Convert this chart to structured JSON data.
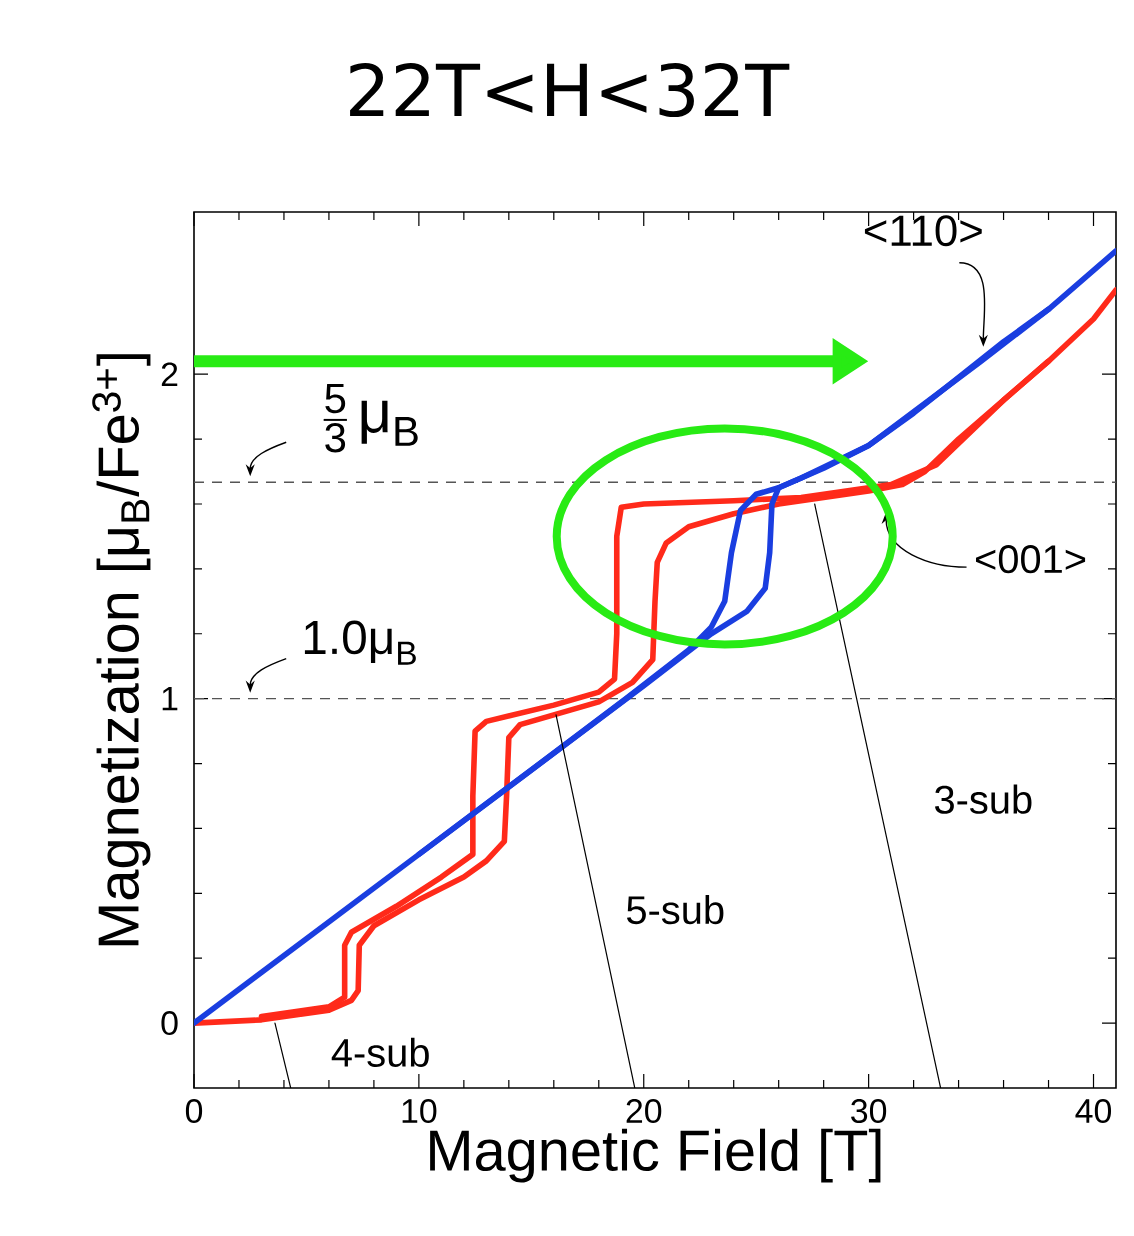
{
  "chart_data": {
    "type": "line",
    "title": "22T<H<32T",
    "xlabel": "Magnetic Field [T]",
    "ylabel": "Magnetization [μ$_{B}$/Fe$^{3+}$]",
    "xlim": [
      0,
      41
    ],
    "ylim": [
      -0.2,
      2.5
    ],
    "xticks": [
      0,
      10,
      20,
      30,
      40
    ],
    "yticks": [
      0,
      1,
      2
    ],
    "grid": false,
    "marker": "none",
    "line_style": "solid",
    "series": [
      {
        "color": "#ff2a1a",
        "x": [
          0,
          3,
          6,
          7,
          7.3,
          7.35,
          8,
          10,
          12,
          13,
          13.8,
          13.9,
          14,
          14.5,
          16,
          18,
          19.5,
          20.4,
          20.5,
          20.6,
          21,
          22,
          24,
          26,
          28,
          30,
          31.5,
          32.5,
          34,
          36,
          38,
          40,
          41
        ],
        "values": [
          0,
          0.01,
          0.04,
          0.07,
          0.1,
          0.24,
          0.3,
          0.38,
          0.45,
          0.5,
          0.56,
          0.7,
          0.88,
          0.92,
          0.95,
          0.99,
          1.05,
          1.12,
          1.3,
          1.42,
          1.48,
          1.53,
          1.57,
          1.6,
          1.62,
          1.64,
          1.66,
          1.7,
          1.8,
          1.92,
          2.04,
          2.17,
          2.26
        ]
      },
      {
        "color": "#ff2a1a",
        "x": [
          3,
          6,
          6.7,
          6.7,
          7,
          9,
          11,
          12.4,
          12.4,
          12.5,
          13,
          16,
          18,
          18.7,
          18.8,
          18.8,
          19,
          20,
          24,
          27,
          31,
          33,
          36,
          38
        ],
        "values": [
          0.02,
          0.05,
          0.08,
          0.24,
          0.28,
          0.36,
          0.45,
          0.52,
          0.7,
          0.9,
          0.93,
          0.98,
          1.02,
          1.06,
          1.2,
          1.5,
          1.59,
          1.6,
          1.61,
          1.62,
          1.66,
          1.72,
          1.92,
          2.04
        ]
      },
      {
        "color": "#1a3ee0",
        "x": [
          0,
          5,
          10,
          15,
          19.2,
          22,
          23,
          23.6,
          23.9,
          24.3,
          25,
          26,
          27,
          28,
          30,
          32,
          34,
          36,
          38,
          40,
          41
        ],
        "values": [
          0,
          0.26,
          0.52,
          0.78,
          1.0,
          1.15,
          1.22,
          1.3,
          1.45,
          1.58,
          1.63,
          1.65,
          1.68,
          1.71,
          1.78,
          1.88,
          1.99,
          2.1,
          2.2,
          2.32,
          2.38
        ]
      },
      {
        "color": "#1a3ee0",
        "x": [
          10,
          20,
          23,
          24.6,
          25.4,
          25.6,
          25.7,
          26,
          27,
          30,
          35,
          38
        ],
        "values": [
          0.52,
          1.04,
          1.2,
          1.27,
          1.34,
          1.45,
          1.6,
          1.65,
          1.68,
          1.78,
          2.04,
          2.2
        ]
      },
      {
        "color": "#000000",
        "x": [
          3.6,
          4.3
        ],
        "values": [
          0,
          -0.2
        ]
      },
      {
        "color": "#000000",
        "x": [
          16.1,
          19.6
        ],
        "values": [
          0.95,
          -0.2
        ]
      },
      {
        "color": "#000000",
        "x": [
          27.6,
          33.2
        ],
        "values": [
          1.6,
          -0.2
        ]
      }
    ],
    "ref_lines": [
      {
        "axis": "y",
        "value": 1,
        "label": "\\text{1.0μ}_{\\text{B}}",
        "color": "#555555",
        "line_style": "dashed"
      },
      {
        "axis": "y",
        "value": 1.667,
        "label": "\\frac{\\text{5}}{\\text{3}}\\,\\text{μ}_{\\text{B}}",
        "color": "#555555",
        "line_style": "dashed"
      }
    ],
    "annotations": [
      {
        "text": "<110>",
        "x": 35.1,
        "y": 2.06
      },
      "<001>",
      "4-sub",
      "5-sub",
      "3-sub"
    ]
  }
}
